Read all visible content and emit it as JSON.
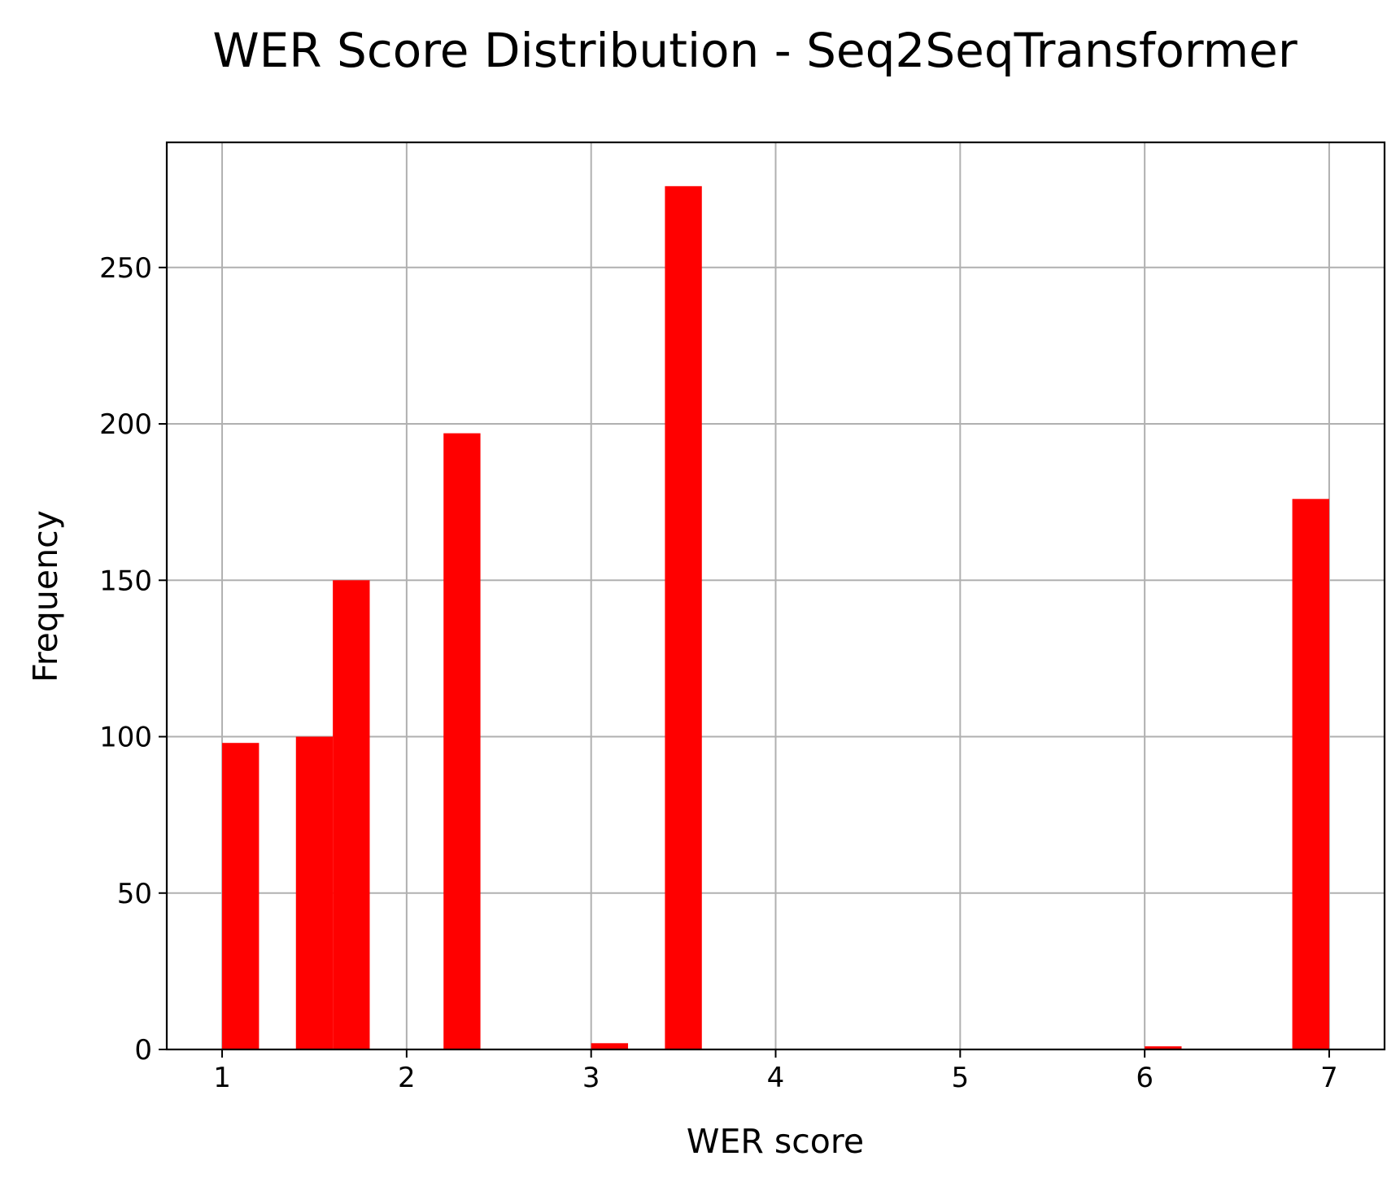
{
  "chart_data": {
    "type": "bar",
    "title": "WER Score Distribution - Seq2SeqTransformer",
    "xlabel": "WER score",
    "ylabel": "Frequency",
    "xlim": [
      0.7,
      7.3
    ],
    "ylim": [
      0,
      290
    ],
    "xticks": [
      1,
      2,
      3,
      4,
      5,
      6,
      7
    ],
    "yticks": [
      0,
      50,
      100,
      150,
      200,
      250
    ],
    "grid": true,
    "color": "#ff0000",
    "bin_width": 0.2,
    "bins": [
      {
        "x0": 1.0,
        "x1": 1.2,
        "value": 98
      },
      {
        "x0": 1.4,
        "x1": 1.6,
        "value": 100
      },
      {
        "x0": 1.6,
        "x1": 1.8,
        "value": 150
      },
      {
        "x0": 2.2,
        "x1": 2.4,
        "value": 197
      },
      {
        "x0": 3.0,
        "x1": 3.2,
        "value": 2
      },
      {
        "x0": 3.4,
        "x1": 3.6,
        "value": 276
      },
      {
        "x0": 6.0,
        "x1": 6.2,
        "value": 1
      },
      {
        "x0": 6.8,
        "x1": 7.0,
        "value": 176
      }
    ]
  }
}
